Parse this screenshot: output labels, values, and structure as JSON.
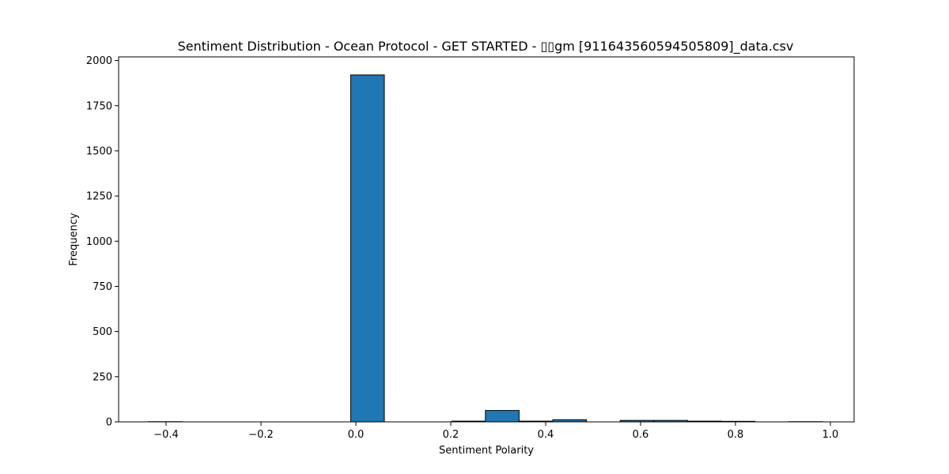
{
  "chart_data": {
    "type": "bar",
    "title": "Sentiment Distribution - Ocean Protocol - GET STARTED - ▯▯gm [911643560594505809]_data.csv",
    "xlabel": "Sentiment Polarity",
    "ylabel": "Frequency",
    "xlim": [
      -0.5,
      1.05
    ],
    "ylim": [
      0,
      2020
    ],
    "xticks": [
      -0.4,
      -0.2,
      0.0,
      0.2,
      0.4,
      0.6,
      0.8,
      1.0
    ],
    "xtick_labels": [
      "−0.4",
      "−0.2",
      "0.0",
      "0.2",
      "0.4",
      "0.6",
      "0.8",
      "1.0"
    ],
    "yticks": [
      0,
      250,
      500,
      750,
      1000,
      1250,
      1500,
      1750,
      2000
    ],
    "ytick_labels": [
      "0",
      "250",
      "500",
      "750",
      "1000",
      "1250",
      "1500",
      "1750",
      "2000"
    ],
    "bin_edges": [
      -0.4375,
      -0.366,
      -0.295,
      -0.224,
      -0.153,
      -0.082,
      -0.011,
      0.06,
      0.131,
      0.202,
      0.273,
      0.344,
      0.415,
      0.486,
      0.557,
      0.628,
      0.699,
      0.77,
      0.841,
      0.912,
      0.983
    ],
    "values": [
      1,
      0,
      0,
      0,
      0,
      0,
      1920,
      0,
      0,
      4,
      63,
      4,
      12,
      0,
      8,
      8,
      4,
      3,
      0,
      1
    ],
    "grid": false,
    "colors": {
      "bar_fill": "#1f77b4",
      "bar_edge": "#000000"
    }
  }
}
